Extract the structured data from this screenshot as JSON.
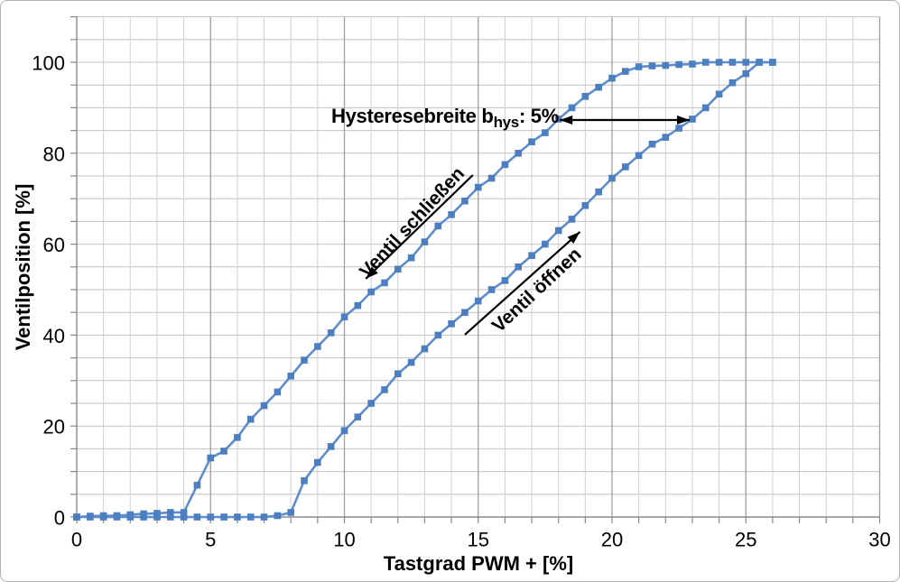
{
  "chart": {
    "x_title": "Tastgrad PWM + [%]",
    "y_title": "Ventilposition [%]",
    "annotation": {
      "prefix": "Hysteresebreite b",
      "sub": "hys",
      "suffix": ": 5%"
    },
    "labels": {
      "close": "Ventil schließen",
      "open": "Ventil öffnen"
    }
  },
  "chart_data": {
    "type": "line",
    "title": "",
    "xlabel": "Tastgrad PWM + [%]",
    "ylabel": "Ventilposition [%]",
    "xlim": [
      0,
      30
    ],
    "ylim": [
      0,
      110
    ],
    "x_grid_step": 1,
    "x_grid_major_step": 5,
    "y_grid_step": 5,
    "x_ticks_labeled": [
      0,
      5,
      10,
      15,
      20,
      25,
      30
    ],
    "y_ticks_labeled": [
      0,
      20,
      40,
      60,
      80,
      100
    ],
    "legend_position": "none",
    "grid": "on",
    "marker": "square",
    "series": [
      {
        "name": "Ventil schließen",
        "x": [
          0,
          0.5,
          1,
          1.5,
          2,
          2.5,
          3,
          3.5,
          4,
          4.5,
          5,
          5.5,
          6,
          6.5,
          7,
          7.5,
          8,
          8.5,
          9,
          9.5,
          10,
          10.5,
          11,
          11.5,
          12,
          12.5,
          13,
          13.5,
          14,
          14.5,
          15,
          15.5,
          16,
          16.5,
          17,
          17.5,
          18,
          18.5,
          19,
          19.5,
          20,
          20.5,
          21,
          21.5,
          22,
          22.5,
          23,
          23.5,
          24,
          24.5,
          25,
          25.5,
          26
        ],
        "y": [
          0,
          0.2,
          0.3,
          0.3,
          0.5,
          0.7,
          0.8,
          1,
          1,
          7,
          13,
          14.5,
          17.5,
          21.5,
          24.5,
          27.5,
          31,
          34.5,
          37.5,
          40.5,
          44,
          46.5,
          49.5,
          51.5,
          54.5,
          57,
          60.5,
          64,
          66.5,
          69.5,
          72.5,
          74.5,
          77.5,
          80,
          82.5,
          84.5,
          87.5,
          90,
          92.5,
          94.5,
          96.5,
          98,
          99,
          99.2,
          99.3,
          99.5,
          99.6,
          100,
          100,
          100,
          100,
          100,
          100
        ]
      },
      {
        "name": "Ventil öffnen",
        "x": [
          0,
          0.5,
          1,
          1.5,
          2,
          2.5,
          3,
          3.5,
          4,
          4.5,
          5,
          5.5,
          6,
          6.5,
          7,
          7.5,
          8,
          8.5,
          9,
          9.5,
          10,
          10.5,
          11,
          11.5,
          12,
          12.5,
          13,
          13.5,
          14,
          14.5,
          15,
          15.5,
          16,
          16.5,
          17,
          17.5,
          18,
          18.5,
          19,
          19.5,
          20,
          20.5,
          21,
          21.5,
          22,
          22.5,
          23,
          23.5,
          24,
          24.5,
          25,
          25.5,
          26
        ],
        "y": [
          0,
          0,
          0,
          0,
          0,
          0,
          0,
          0,
          0,
          0,
          0,
          0,
          0,
          0,
          0,
          0.3,
          1,
          8,
          12,
          15.5,
          19,
          22,
          25,
          28,
          31.5,
          34,
          37,
          40,
          42.5,
          45,
          47.5,
          50,
          52,
          55,
          57.5,
          60,
          63,
          65.5,
          68.5,
          71.5,
          74.5,
          77,
          79.5,
          82,
          83.5,
          85.5,
          87.5,
          90,
          93,
          95.5,
          97.5,
          100,
          100
        ]
      }
    ],
    "annotations": {
      "hysteresis_text": "Hysteresebreite b_hys: 5%",
      "hysteresis_arrow": {
        "x1": 18.05,
        "x2": 22.9,
        "y": 87.3,
        "double_headed": true
      },
      "close_label": "Ventil schließen",
      "close_arrow": {
        "x1": 14.8,
        "y1": 75.2,
        "x2": 10.8,
        "y2": 52.4
      },
      "open_label": "Ventil öffnen",
      "open_arrow": {
        "x1": 14.5,
        "y1": 40.1,
        "x2": 18.8,
        "y2": 62.7
      }
    },
    "colors": {
      "line": "#5E8DCB",
      "marker": "#4C7EC0",
      "grid_minor": "#d0d0d0",
      "grid_major": "#9e9e9e",
      "grid_h": "#c2c2c2",
      "axis": "#8a8a8a",
      "text": "#000000",
      "arrow": "#000000"
    }
  }
}
